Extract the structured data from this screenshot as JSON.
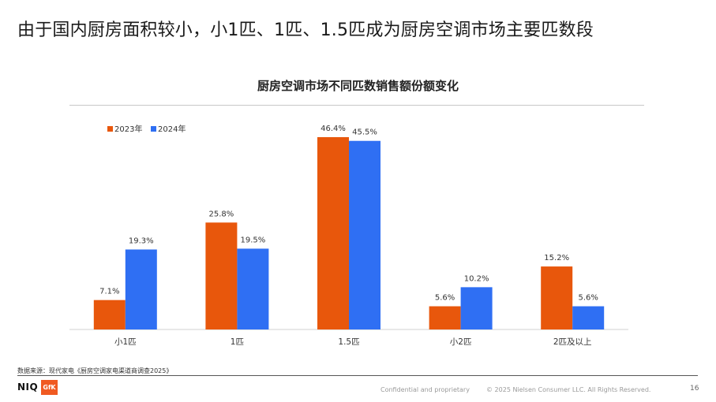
{
  "headline": "由于国内厨房面积较小，小1匹、1匹、1.5匹成为厨房空调市场主要匹数段",
  "source_note": "数据来源：现代家电《厨房空调家电渠道商调查2025》",
  "footer": {
    "logo_niq": "NIQ",
    "logo_gfk": "GfK",
    "confidential": "Confidential and proprietary",
    "copyright": "© 2025 Nielsen Consumer LLC. All Rights Reserved.",
    "page_number": "16"
  },
  "colors": {
    "2023": "#e8570c",
    "2024": "#2f6ff3"
  },
  "chart_data": {
    "type": "bar",
    "title": "厨房空调市场不同匹数销售额份额变化",
    "categories": [
      "小1匹",
      "1匹",
      "1.5匹",
      "小2匹",
      "2匹及以上"
    ],
    "series": [
      {
        "name": "2023年",
        "values": [
          7.1,
          25.8,
          46.4,
          5.6,
          15.2
        ],
        "labels": [
          "7.1%",
          "25.8%",
          "46.4%",
          "5.6%",
          "15.2%"
        ]
      },
      {
        "name": "2024年",
        "values": [
          19.3,
          19.5,
          45.5,
          10.2,
          5.6
        ],
        "labels": [
          "19.3%",
          "19.5%",
          "45.5%",
          "10.2%",
          "5.6%"
        ]
      }
    ],
    "unit": "%",
    "ylim": [
      0,
      46.4
    ],
    "grid": false,
    "legend_position": "top-left"
  }
}
